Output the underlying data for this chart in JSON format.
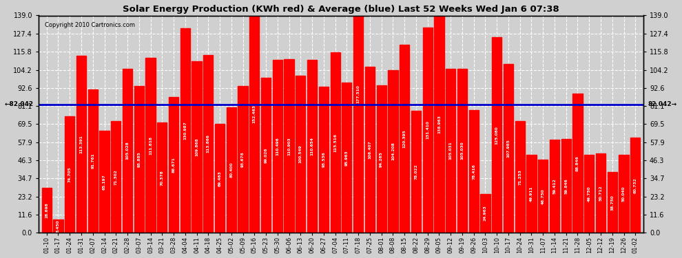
{
  "title": "Solar Energy Production (KWh red) & Average (blue) Last 52 Weeks Wed Jan 6 07:38",
  "copyright": "Copyright 2010 Cartronics.com",
  "average": 82.042,
  "bar_color": "#ff0000",
  "avg_line_color": "#0000cc",
  "plot_bg_color": "#d0d0d0",
  "categories": [
    "01-10",
    "01-17",
    "01-24",
    "01-31",
    "02-07",
    "02-14",
    "02-21",
    "02-28",
    "03-07",
    "03-14",
    "03-21",
    "03-28",
    "04-04",
    "04-11",
    "04-18",
    "04-25",
    "05-02",
    "05-09",
    "05-16",
    "05-23",
    "05-30",
    "06-06",
    "06-13",
    "06-20",
    "06-27",
    "07-04",
    "07-11",
    "07-18",
    "07-25",
    "08-01",
    "08-08",
    "08-15",
    "08-22",
    "08-29",
    "09-05",
    "09-12",
    "09-19",
    "09-26",
    "10-03",
    "10-10",
    "10-17",
    "10-24",
    "10-31",
    "11-07",
    "11-14",
    "11-21",
    "11-28",
    "12-05",
    "12-12",
    "12-19",
    "12-26",
    "01-02"
  ],
  "values": [
    28.698,
    8.45,
    74.705,
    113.391,
    91.761,
    65.197,
    71.302,
    105.028,
    93.885,
    111.818,
    70.378,
    86.671,
    130.987,
    109.868,
    113.866,
    69.463,
    80.4,
    93.678,
    152.463,
    99.026,
    110.496,
    110.903,
    100.549,
    110.654,
    93.536,
    115.516,
    95.963,
    177.51,
    106.407,
    94.265,
    104.208,
    120.395,
    78.022,
    131.41,
    138.963,
    105.031,
    105.03,
    78.416,
    24.963,
    125.08,
    107.985,
    71.253,
    49.911,
    46.75,
    59.412,
    59.846,
    88.846,
    49.75,
    50.712,
    38.75,
    50.04,
    60.732
  ],
  "ylim": [
    0,
    139.0
  ],
  "yticks": [
    0.0,
    11.6,
    23.2,
    34.7,
    46.3,
    57.9,
    69.5,
    81.1,
    92.6,
    104.2,
    115.8,
    127.4,
    139.0
  ]
}
